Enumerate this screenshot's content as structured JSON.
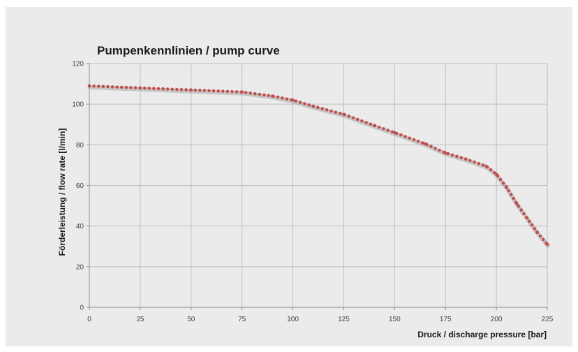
{
  "chart_data": {
    "type": "line",
    "title": "Pumpenkennlinien / pump curve",
    "xlabel": "Druck / discharge pressure [bar]",
    "ylabel": "Förderleistung / flow rate  [l/min]",
    "xlim": [
      0,
      225
    ],
    "ylim": [
      0,
      120
    ],
    "x_ticks": [
      0,
      25,
      50,
      75,
      100,
      125,
      150,
      175,
      200,
      225
    ],
    "y_ticks": [
      0,
      20,
      40,
      60,
      80,
      100,
      120
    ],
    "grid": true,
    "legend": "none",
    "series": [
      {
        "color": "#c0504d",
        "line_style": "dotted",
        "x": [
          0,
          25,
          50,
          75,
          90,
          100,
          110,
          125,
          140,
          150,
          165,
          175,
          185,
          195,
          200,
          205,
          210,
          215,
          220,
          225
        ],
        "y": [
          109,
          108,
          107,
          106,
          104,
          102,
          99,
          95,
          89.5,
          86,
          80.5,
          76,
          73,
          69.5,
          65.5,
          59,
          51,
          44,
          37,
          31
        ]
      }
    ]
  }
}
